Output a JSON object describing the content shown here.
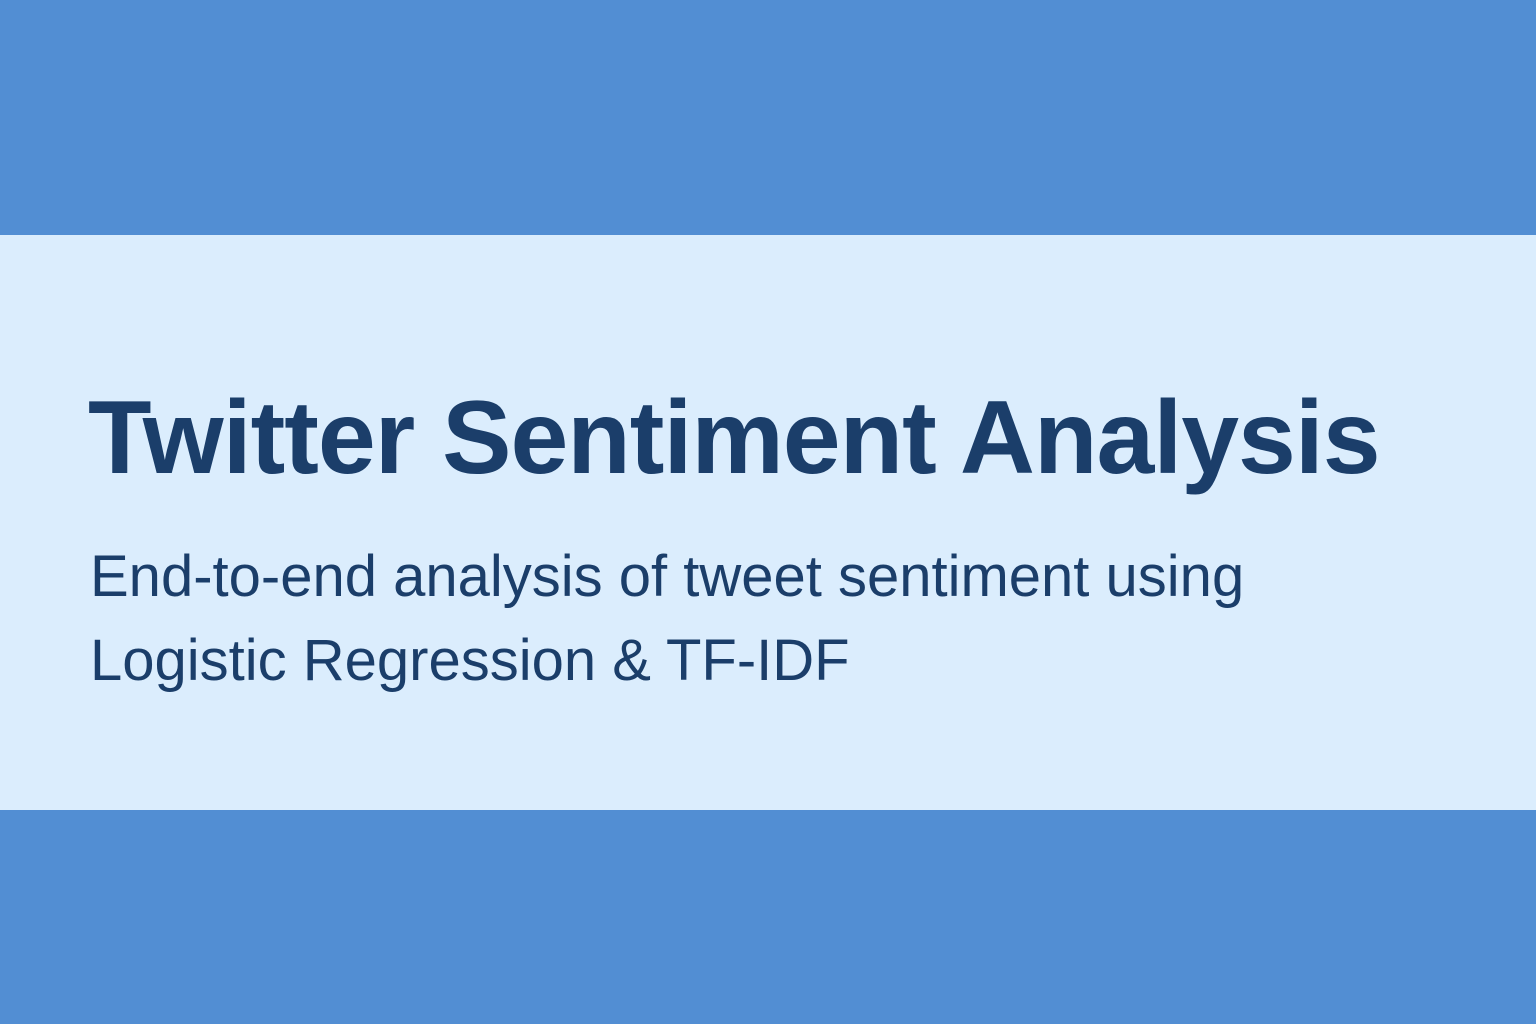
{
  "colors": {
    "band": "#528ed3",
    "background": "#dbedfd",
    "text": "#1b3e6a"
  },
  "hero": {
    "title": "Twitter Sentiment Analysis",
    "subtitle": "End-to-end analysis of tweet sentiment using Logistic Regression & TF-IDF"
  }
}
